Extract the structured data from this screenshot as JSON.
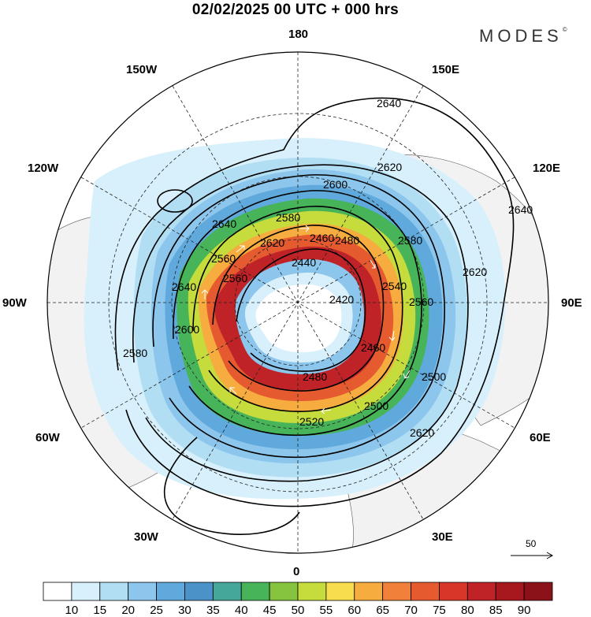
{
  "title": "02/02/2025  00 UTC  + 000 hrs",
  "brand": "MODES",
  "brand_mark": "©",
  "longitude_labels": {
    "lon_180": "180",
    "lon_150w": "150W",
    "lon_150e": "150E",
    "lon_120w": "120W",
    "lon_120e": "120E",
    "lon_90w": "90W",
    "lon_90e": "90E",
    "lon_60w": "60W",
    "lon_60e": "60E",
    "lon_30w": "30W",
    "lon_30e": "30E",
    "lon_0": "0"
  },
  "contour_labels": [
    "2640",
    "2620",
    "2600",
    "2580",
    "2560",
    "2540",
    "2500",
    "2480",
    "2460",
    "2440",
    "2420",
    "2640",
    "2620",
    "2600",
    "2580",
    "2560",
    "2520",
    "2640",
    "2620",
    "2560",
    "2500",
    "2480",
    "2460",
    "2580",
    "2620",
    "2640"
  ],
  "wind_speed_scale": {
    "levels": [
      "10",
      "15",
      "20",
      "25",
      "30",
      "35",
      "40",
      "45",
      "50",
      "55",
      "60",
      "65",
      "70",
      "75",
      "80",
      "85",
      "90"
    ],
    "colors": [
      "#ffffff",
      "#d7f0fb",
      "#b2def4",
      "#8cc6ec",
      "#5fa9dc",
      "#4a92c8",
      "#45a79a",
      "#47b45a",
      "#86c440",
      "#c6db3c",
      "#f8dd4e",
      "#f6ac3e",
      "#f0803a",
      "#e55b2f",
      "#d9362a",
      "#bf2328",
      "#a7171e",
      "#8c1219"
    ]
  },
  "vector_reference": "50"
}
